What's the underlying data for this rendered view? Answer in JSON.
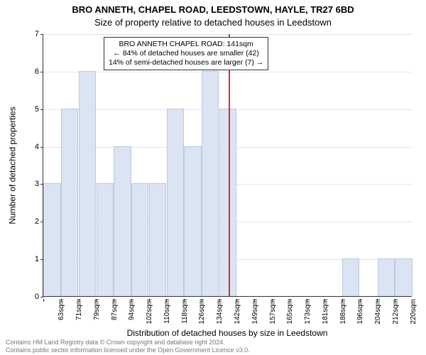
{
  "titles": {
    "main": "BRO ANNETH, CHAPEL ROAD, LEEDSTOWN, HAYLE, TR27 6BD",
    "sub": "Size of property relative to detached houses in Leedstown",
    "x_axis": "Distribution of detached houses by size in Leedstown",
    "y_axis": "Number of detached properties"
  },
  "chart": {
    "type": "histogram",
    "ylim_max": 7,
    "yticks": [
      0,
      1,
      2,
      3,
      4,
      5,
      6,
      7
    ],
    "grid_color": "#e6e6e6",
    "bar_fill": "#dbe4f3",
    "bar_stroke": "#bcc9e0",
    "marker_color": "#cc3333",
    "background": "#ffffff",
    "bars": [
      {
        "label": "63sqm",
        "value": 3
      },
      {
        "label": "71sqm",
        "value": 5
      },
      {
        "label": "79sqm",
        "value": 6
      },
      {
        "label": "87sqm",
        "value": 3
      },
      {
        "label": "94sqm",
        "value": 4
      },
      {
        "label": "102sqm",
        "value": 3
      },
      {
        "label": "110sqm",
        "value": 3
      },
      {
        "label": "118sqm",
        "value": 5
      },
      {
        "label": "126sqm",
        "value": 4
      },
      {
        "label": "134sqm",
        "value": 6
      },
      {
        "label": "142sqm",
        "value": 5
      },
      {
        "label": "149sqm",
        "value": 0
      },
      {
        "label": "157sqm",
        "value": 0
      },
      {
        "label": "165sqm",
        "value": 0
      },
      {
        "label": "173sqm",
        "value": 0
      },
      {
        "label": "181sqm",
        "value": 0
      },
      {
        "label": "188sqm",
        "value": 0
      },
      {
        "label": "196sqm",
        "value": 1
      },
      {
        "label": "204sqm",
        "value": 0
      },
      {
        "label": "212sqm",
        "value": 1
      },
      {
        "label": "220sqm",
        "value": 1
      }
    ],
    "marker_after_index": 10,
    "annotation": {
      "line1": "BRO ANNETH CHAPEL ROAD: 141sqm",
      "line2": "← 84% of detached houses are smaller (42)",
      "line3": "14% of semi-detached houses are larger (7) →"
    },
    "label_fontsize": 12,
    "tick_fontsize": 10
  },
  "footer": {
    "line1": "Contains HM Land Registry data © Crown copyright and database right 2024.",
    "line2": "Contains public sector information licensed under the Open Government Licence v3.0.",
    "color": "#777777"
  }
}
